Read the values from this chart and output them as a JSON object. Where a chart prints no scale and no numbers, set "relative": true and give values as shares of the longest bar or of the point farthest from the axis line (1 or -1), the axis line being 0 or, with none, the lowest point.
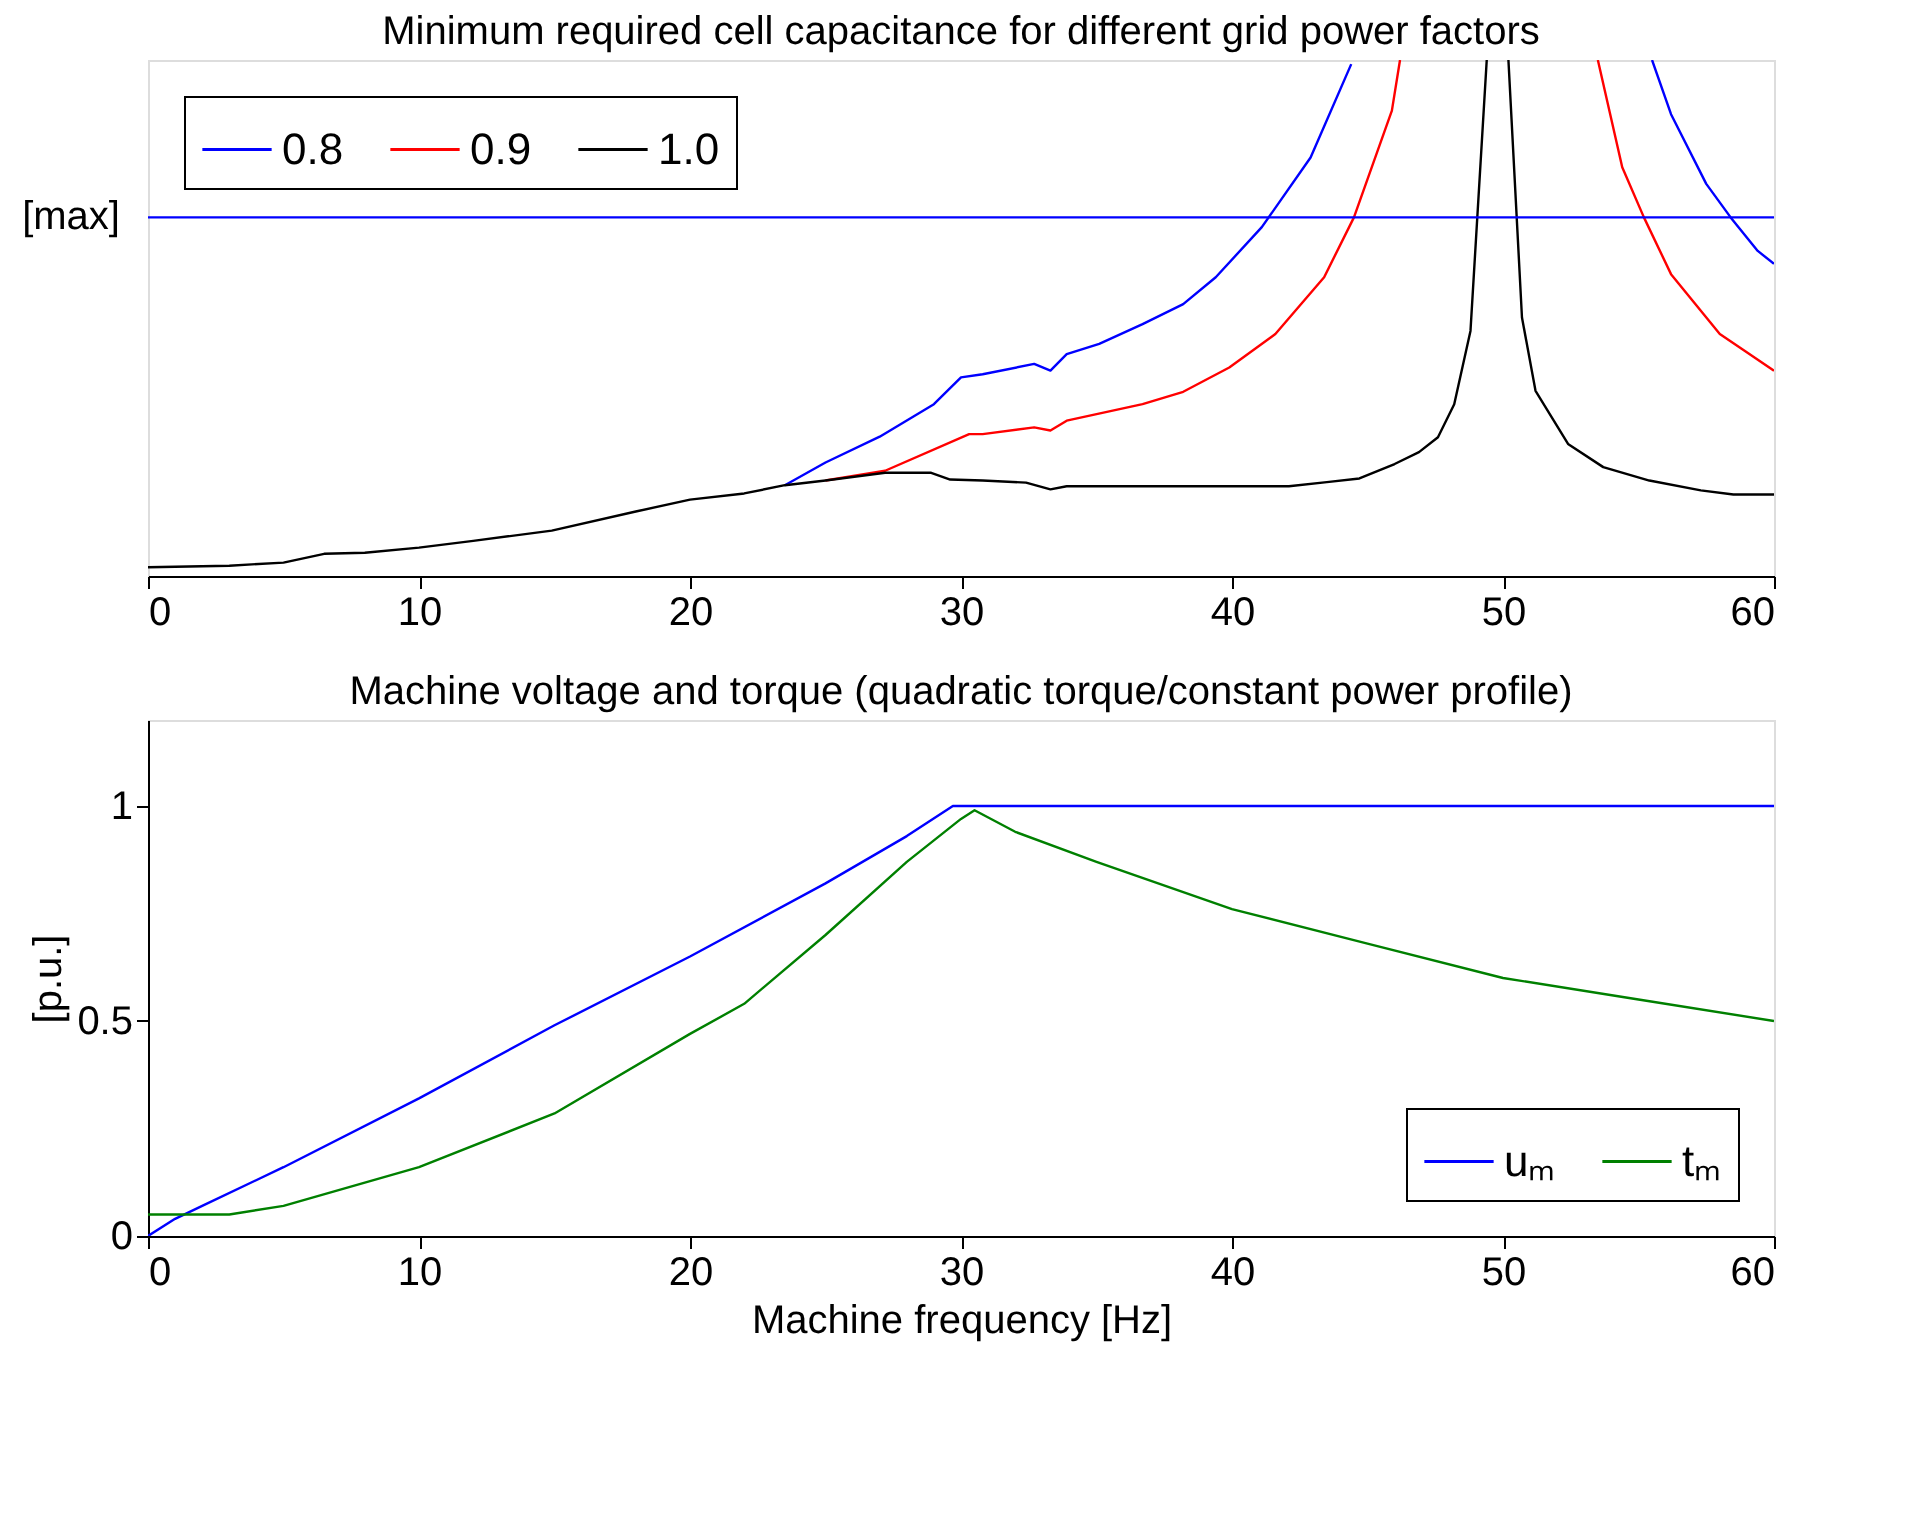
{
  "chart_data": [
    {
      "type": "line",
      "title": "Minimum required cell capacitance for different grid power factors",
      "relative": true,
      "xlim": [
        0,
        60
      ],
      "xticks": [
        0,
        10,
        20,
        30,
        40,
        50,
        60
      ],
      "grid": false,
      "legend": "top left",
      "line_style": "solid",
      "marker": "none",
      "ref_lines": [
        {
          "axis": "y",
          "value": 0.695,
          "label": "[max]",
          "color": "#0000ff"
        }
      ],
      "series": [
        {
          "name": "0.8",
          "color": "#0000ff",
          "x": [
            23.5,
            25,
            27,
            29,
            30,
            30.8,
            32.7,
            33.3,
            33.9,
            35.1,
            36.7,
            38.2,
            39.4,
            41.1,
            42.9,
            44.4,
            44.5,
            55.4,
            55.5,
            56.2,
            57.5,
            58.4,
            59.4,
            60
          ],
          "values": [
            0.176,
            0.22,
            0.27,
            0.333,
            0.385,
            0.391,
            0.411,
            0.398,
            0.43,
            0.45,
            0.488,
            0.527,
            0.579,
            0.676,
            0.811,
            0.992,
            null,
            null,
            1.0,
            0.895,
            0.76,
            0.695,
            0.63,
            0.605
          ]
        },
        {
          "name": "0.9",
          "color": "#ff0000",
          "x": [
            25,
            27.2,
            30.3,
            30.8,
            32.7,
            33.3,
            33.9,
            36.7,
            38.2,
            39.9,
            41.6,
            43.4,
            44.5,
            45.9,
            46.2,
            46.3,
            53.4,
            53.5,
            54.4,
            55.2,
            56.2,
            58.0,
            58.9,
            60
          ],
          "values": [
            0.185,
            0.204,
            0.275,
            0.275,
            0.288,
            0.282,
            0.301,
            0.333,
            0.357,
            0.404,
            0.469,
            0.579,
            0.695,
            0.902,
            1.0,
            null,
            null,
            1.0,
            0.792,
            0.695,
            0.585,
            0.469,
            0.437,
            0.398
          ]
        },
        {
          "name": "1.0",
          "color": "#000000",
          "x": [
            0,
            3,
            5,
            6.5,
            8,
            10,
            12,
            14.9,
            18,
            20,
            22,
            23.5,
            25,
            27.2,
            28.9,
            29.6,
            30.8,
            32.4,
            33.3,
            33.9,
            42.1,
            43.5,
            44.7,
            46.0,
            46.9,
            47.6,
            48.2,
            48.8,
            49.4,
            49.8,
            50.2,
            50.7,
            51.2,
            52.4,
            53.7,
            55.4,
            57.3,
            58.5,
            60
          ],
          "values": [
            0.017,
            0.02,
            0.026,
            0.043,
            0.045,
            0.055,
            0.068,
            0.088,
            0.125,
            0.148,
            0.16,
            0.176,
            0.185,
            0.2,
            0.2,
            0.187,
            0.185,
            0.181,
            0.168,
            0.174,
            0.174,
            0.182,
            0.189,
            0.217,
            0.24,
            0.269,
            0.333,
            0.475,
            1.0,
            null,
            1.0,
            0.501,
            0.359,
            0.256,
            0.211,
            0.185,
            0.166,
            0.158,
            0.158
          ]
        }
      ]
    },
    {
      "type": "line",
      "title": "Machine voltage and torque (quadratic torque/constant power profile)",
      "xlabel": "Machine frequency [Hz]",
      "ylabel": "[p.u.]",
      "xlim": [
        0,
        60
      ],
      "xticks": [
        0,
        10,
        20,
        30,
        40,
        50,
        60
      ],
      "ylim": [
        0,
        1.2
      ],
      "yticks": [
        0,
        0.5,
        1
      ],
      "grid": false,
      "legend": "bottom right",
      "line_style": "solid",
      "marker": "none",
      "series": [
        {
          "name": "uₘ",
          "color": "#0000ff",
          "x": [
            0,
            1,
            2,
            5,
            10,
            15,
            20,
            25,
            28,
            29.7,
            30,
            40,
            50,
            60
          ],
          "values": [
            0,
            0.04,
            0.07,
            0.16,
            0.32,
            0.49,
            0.65,
            0.82,
            0.93,
            1.0,
            1.0,
            1.0,
            1.0,
            1.0
          ]
        },
        {
          "name": "tₘ",
          "color": "#008000",
          "x": [
            0,
            3,
            5,
            10,
            15,
            20,
            22,
            25,
            28,
            30,
            30.5,
            32,
            35,
            40,
            45,
            50,
            55,
            60
          ],
          "values": [
            0.05,
            0.05,
            0.07,
            0.16,
            0.285,
            0.47,
            0.54,
            0.7,
            0.87,
            0.97,
            0.99,
            0.94,
            0.87,
            0.76,
            0.68,
            0.6,
            0.55,
            0.5
          ]
        }
      ]
    }
  ]
}
